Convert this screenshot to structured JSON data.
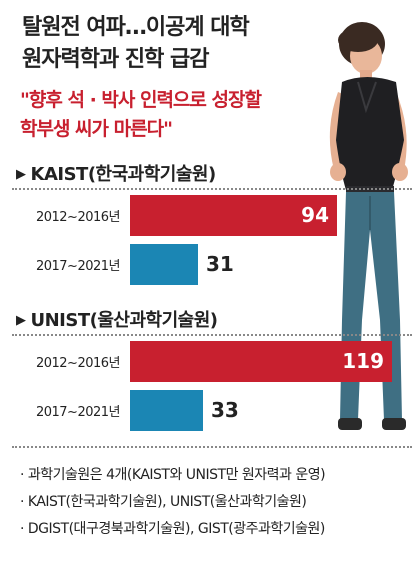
{
  "headline": {
    "line1": "탈원전 여파…이공계 대학",
    "line2": "원자력학과 진학 급감"
  },
  "quote": {
    "line1": "\"향후 석 · 박사 인력으로 성장할",
    "line2": "학부생 씨가 마른다\""
  },
  "colors": {
    "period1": "#c8202f",
    "period2": "#1b86b4",
    "title_text": "#222222",
    "quote_text": "#c8202f"
  },
  "chart_data": [
    {
      "type": "bar",
      "title": "KAIST(한국과학기술원)",
      "categories": [
        "2012~2016년",
        "2017~2021년"
      ],
      "values": [
        94,
        31
      ]
    },
    {
      "type": "bar",
      "title": "UNIST(울산과학기술원)",
      "categories": [
        "2012~2016년",
        "2017~2021년"
      ],
      "values": [
        119,
        33
      ]
    }
  ],
  "notes": [
    "· 과학기술원은 4개(KAIST와 UNIST만 원자력과 운영)",
    "· KAIST(한국과학기술원), UNIST(울산과학기술원)",
    "· DGIST(대구경북과학기술원), GIST(광주과학기술원)"
  ]
}
